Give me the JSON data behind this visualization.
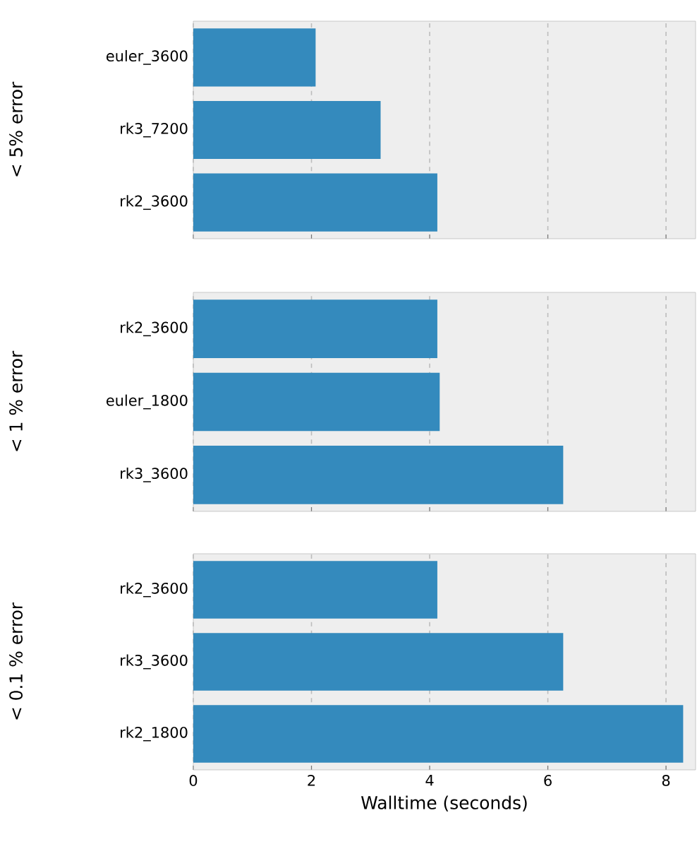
{
  "chart_data": [
    {
      "type": "bar",
      "orientation": "horizontal",
      "ylabel": "< 5% error",
      "categories": [
        "euler_3600",
        "rk3_7200",
        "rk2_3600"
      ],
      "values": [
        2.07,
        3.17,
        4.13
      ],
      "color": "#348abd",
      "xlim": [
        0,
        8.5
      ],
      "xticks": [
        0,
        2,
        4,
        6,
        8
      ],
      "grid": "x",
      "tick_labels": "y"
    },
    {
      "type": "bar",
      "orientation": "horizontal",
      "ylabel": "< 1 % error",
      "categories": [
        "rk2_3600",
        "euler_1800",
        "rk3_3600"
      ],
      "values": [
        4.13,
        4.17,
        6.26
      ],
      "color": "#348abd",
      "xlim": [
        0,
        8.5
      ],
      "xticks": [
        0,
        2,
        4,
        6,
        8
      ],
      "grid": "x",
      "tick_labels": "y"
    },
    {
      "type": "bar",
      "orientation": "horizontal",
      "ylabel": "< 0.1 % error",
      "xlabel": "Walltime (seconds)",
      "categories": [
        "rk2_3600",
        "rk3_3600",
        "rk2_1800"
      ],
      "values": [
        4.13,
        6.26,
        8.29
      ],
      "color": "#348abd",
      "xlim": [
        0,
        8.5
      ],
      "xticks": [
        0,
        2,
        4,
        6,
        8
      ],
      "grid": "x"
    }
  ]
}
